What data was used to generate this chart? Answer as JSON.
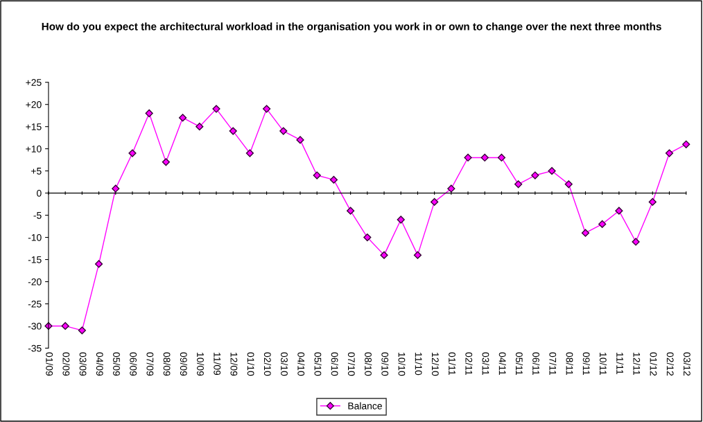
{
  "chart_data": {
    "type": "line",
    "title": "How do you expect the architectural workload in the organisation you work in or own to change over the next three months",
    "categories": [
      "01/09",
      "02/09",
      "03/09",
      "04/09",
      "05/09",
      "06/09",
      "07/09",
      "08/09",
      "09/09",
      "10/09",
      "11/09",
      "12/09",
      "01/10",
      "02/10",
      "03/10",
      "04/10",
      "05/10",
      "06/10",
      "07/10",
      "08/10",
      "09/10",
      "10/10",
      "11/10",
      "12/10",
      "01/11",
      "02/11",
      "03/11",
      "04/11",
      "05/11",
      "06/11",
      "07/11",
      "08/11",
      "09/11",
      "10/11",
      "11/11",
      "12/11",
      "01/12",
      "02/12",
      "03/12"
    ],
    "series": [
      {
        "name": "Balance",
        "color": "#ff00ff",
        "values": [
          -30,
          -30,
          -31,
          -16,
          1,
          9,
          18,
          7,
          17,
          15,
          19,
          14,
          9,
          19,
          14,
          12,
          4,
          3,
          -4,
          -10,
          -14,
          -6,
          -14,
          -2,
          1,
          8,
          8,
          8,
          2,
          4,
          5,
          2,
          -9,
          -7,
          -4,
          -11,
          -2,
          9,
          11
        ]
      }
    ],
    "ylim": [
      -35,
      25
    ],
    "yticks": [
      {
        "value": 25,
        "label": "+25"
      },
      {
        "value": 20,
        "label": "+20"
      },
      {
        "value": 15,
        "label": "+15"
      },
      {
        "value": 10,
        "label": "+10"
      },
      {
        "value": 5,
        "label": "+5"
      },
      0,
      {
        "value": -5,
        "label": "-5"
      },
      {
        "value": -10,
        "label": "-10"
      },
      {
        "value": -15,
        "label": "-15"
      },
      {
        "value": -20,
        "label": "-20"
      },
      {
        "value": -25,
        "label": "-25"
      },
      {
        "value": -30,
        "label": "-30"
      },
      {
        "value": -35,
        "label": "-35"
      }
    ],
    "marker": "diamond",
    "line_style": "solid",
    "legend": "bottom"
  }
}
